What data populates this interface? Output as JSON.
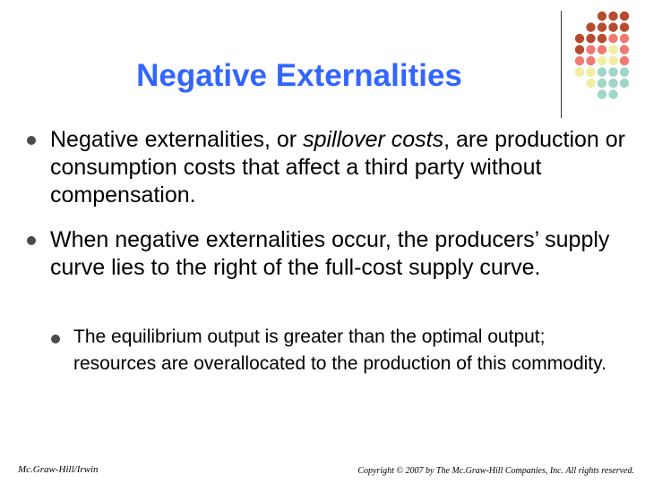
{
  "slide": {
    "title": "Negative Externalities",
    "bullets": [
      {
        "parts": [
          {
            "text": "Negative externalities, or ",
            "italic": false
          },
          {
            "text": "spillover costs",
            "italic": true
          },
          {
            "text": ", are production or consumption costs that affect a third party without compensation.",
            "italic": false
          }
        ]
      },
      {
        "parts": [
          {
            "text": "When negative externalities occur, the producers’ supply curve lies to the right of the full-cost supply curve.",
            "italic": false
          }
        ]
      }
    ],
    "sub_bullets": [
      {
        "text": "The equilibrium output is greater than the optimal output; resources are overallocated to the production of this commodity."
      }
    ]
  },
  "footer": {
    "left": "Mc.Graw-Hill/Irwin",
    "right": "Copyright © 2007 by The Mc.Graw-Hill Companies, Inc. All rights reserved."
  },
  "colors": {
    "title": "#3366ff",
    "dot_palette": {
      "r": "#b84a2e",
      "p": "#ee7a72",
      "y": "#f0eea0",
      "t": "#9ed6c8"
    }
  },
  "decor": {
    "dot_grid": [
      "  rrr",
      " rrrr",
      "rrrpp",
      "rppyp",
      "ppyyp",
      "yyttt",
      " yttt",
      "  tt "
    ]
  }
}
